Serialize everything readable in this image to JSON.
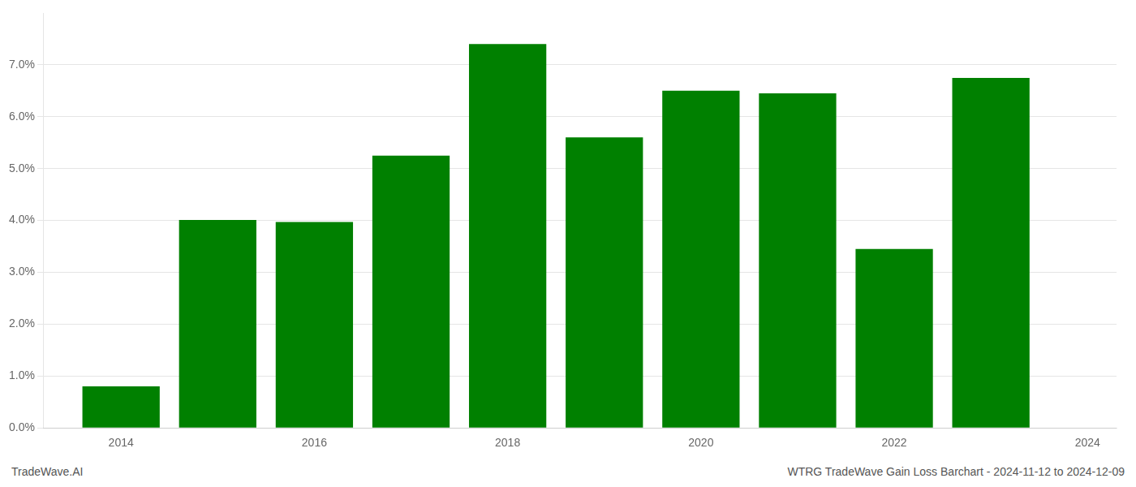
{
  "chart_data": {
    "type": "bar",
    "x": [
      2014,
      2015,
      2016,
      2017,
      2018,
      2019,
      2020,
      2021,
      2022,
      2023
    ],
    "values": [
      0.008,
      0.0401,
      0.0397,
      0.0525,
      0.074,
      0.056,
      0.065,
      0.0645,
      0.0345,
      0.0675
    ],
    "color": "#008000",
    "xlim": [
      2013.2,
      2024.3
    ],
    "xticks": [
      2014,
      2016,
      2018,
      2020,
      2022,
      2024
    ],
    "ylim": [
      0.0,
      0.08
    ],
    "yticks": [
      {
        "value": 0.0,
        "label": "0.0%"
      },
      {
        "value": 0.01,
        "label": "1.0%"
      },
      {
        "value": 0.02,
        "label": "2.0%"
      },
      {
        "value": 0.03,
        "label": "3.0%"
      },
      {
        "value": 0.04,
        "label": "4.0%"
      },
      {
        "value": 0.05,
        "label": "5.0%"
      },
      {
        "value": 0.06,
        "label": "6.0%"
      },
      {
        "value": 0.07,
        "label": "7.0%"
      }
    ],
    "grid": "y",
    "legend": false,
    "annotations": [
      "TradeWave.AI",
      "WTRG TradeWave Gain Loss Barchart - 2024-11-12 to 2024-12-09"
    ]
  }
}
